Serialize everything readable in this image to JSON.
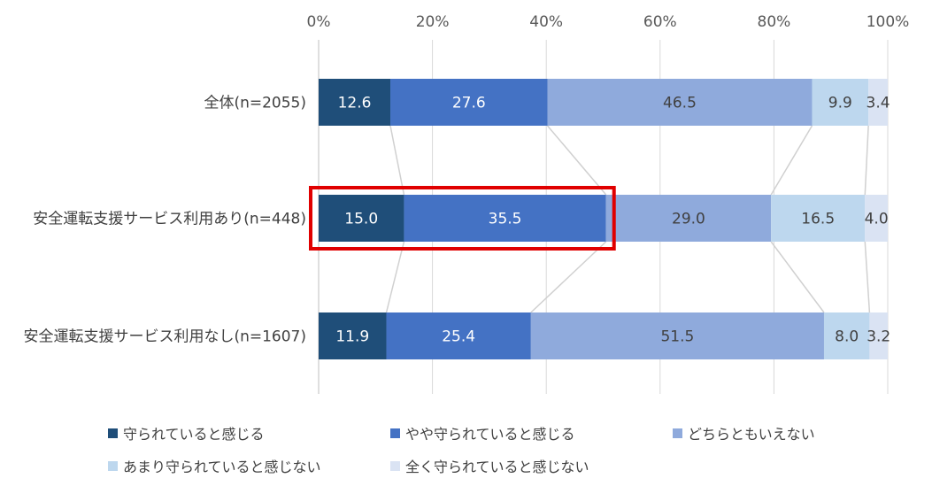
{
  "chart_data": {
    "type": "bar",
    "orientation": "horizontal",
    "stacked": true,
    "unit": "%",
    "xlim": [
      0,
      100
    ],
    "x_ticks": [
      "0%",
      "20%",
      "40%",
      "60%",
      "80%",
      "100%"
    ],
    "x_tick_values": [
      0,
      20,
      40,
      60,
      80,
      100
    ],
    "grid": true,
    "legend_position": "bottom",
    "categories": [
      "全体(n=2055)",
      "安全運転支援サービス利用あり(n=448)",
      "安全運転支援サービス利用なし(n=1607)"
    ],
    "series": [
      {
        "name": "守られていると感じる",
        "color": "#1f4e79",
        "values": [
          12.6,
          15.0,
          11.9
        ],
        "labels": [
          "12.6",
          "15.0",
          "11.9"
        ]
      },
      {
        "name": "やや守られていると感じる",
        "color": "#4472c4",
        "values": [
          27.6,
          35.5,
          25.4
        ],
        "labels": [
          "27.6",
          "35.5",
          "25.4"
        ]
      },
      {
        "name": "どちらともいえない",
        "color": "#8faadc",
        "values": [
          46.5,
          29.0,
          51.5
        ],
        "labels": [
          "46.5",
          "29.0",
          "51.5"
        ]
      },
      {
        "name": "あまり守られていると感じない",
        "color": "#bdd7ee",
        "values": [
          9.9,
          16.5,
          8.0
        ],
        "labels": [
          "9.9",
          "16.5",
          "8.0"
        ]
      },
      {
        "name": "全く守られていると感じない",
        "color": "#dae3f3",
        "values": [
          3.4,
          4.0,
          3.2
        ],
        "labels": [
          "3.4",
          "4.0",
          "3.2"
        ]
      }
    ],
    "highlight": {
      "category_index": 1,
      "series_indices": [
        0,
        1
      ],
      "color": "#e00000"
    }
  }
}
